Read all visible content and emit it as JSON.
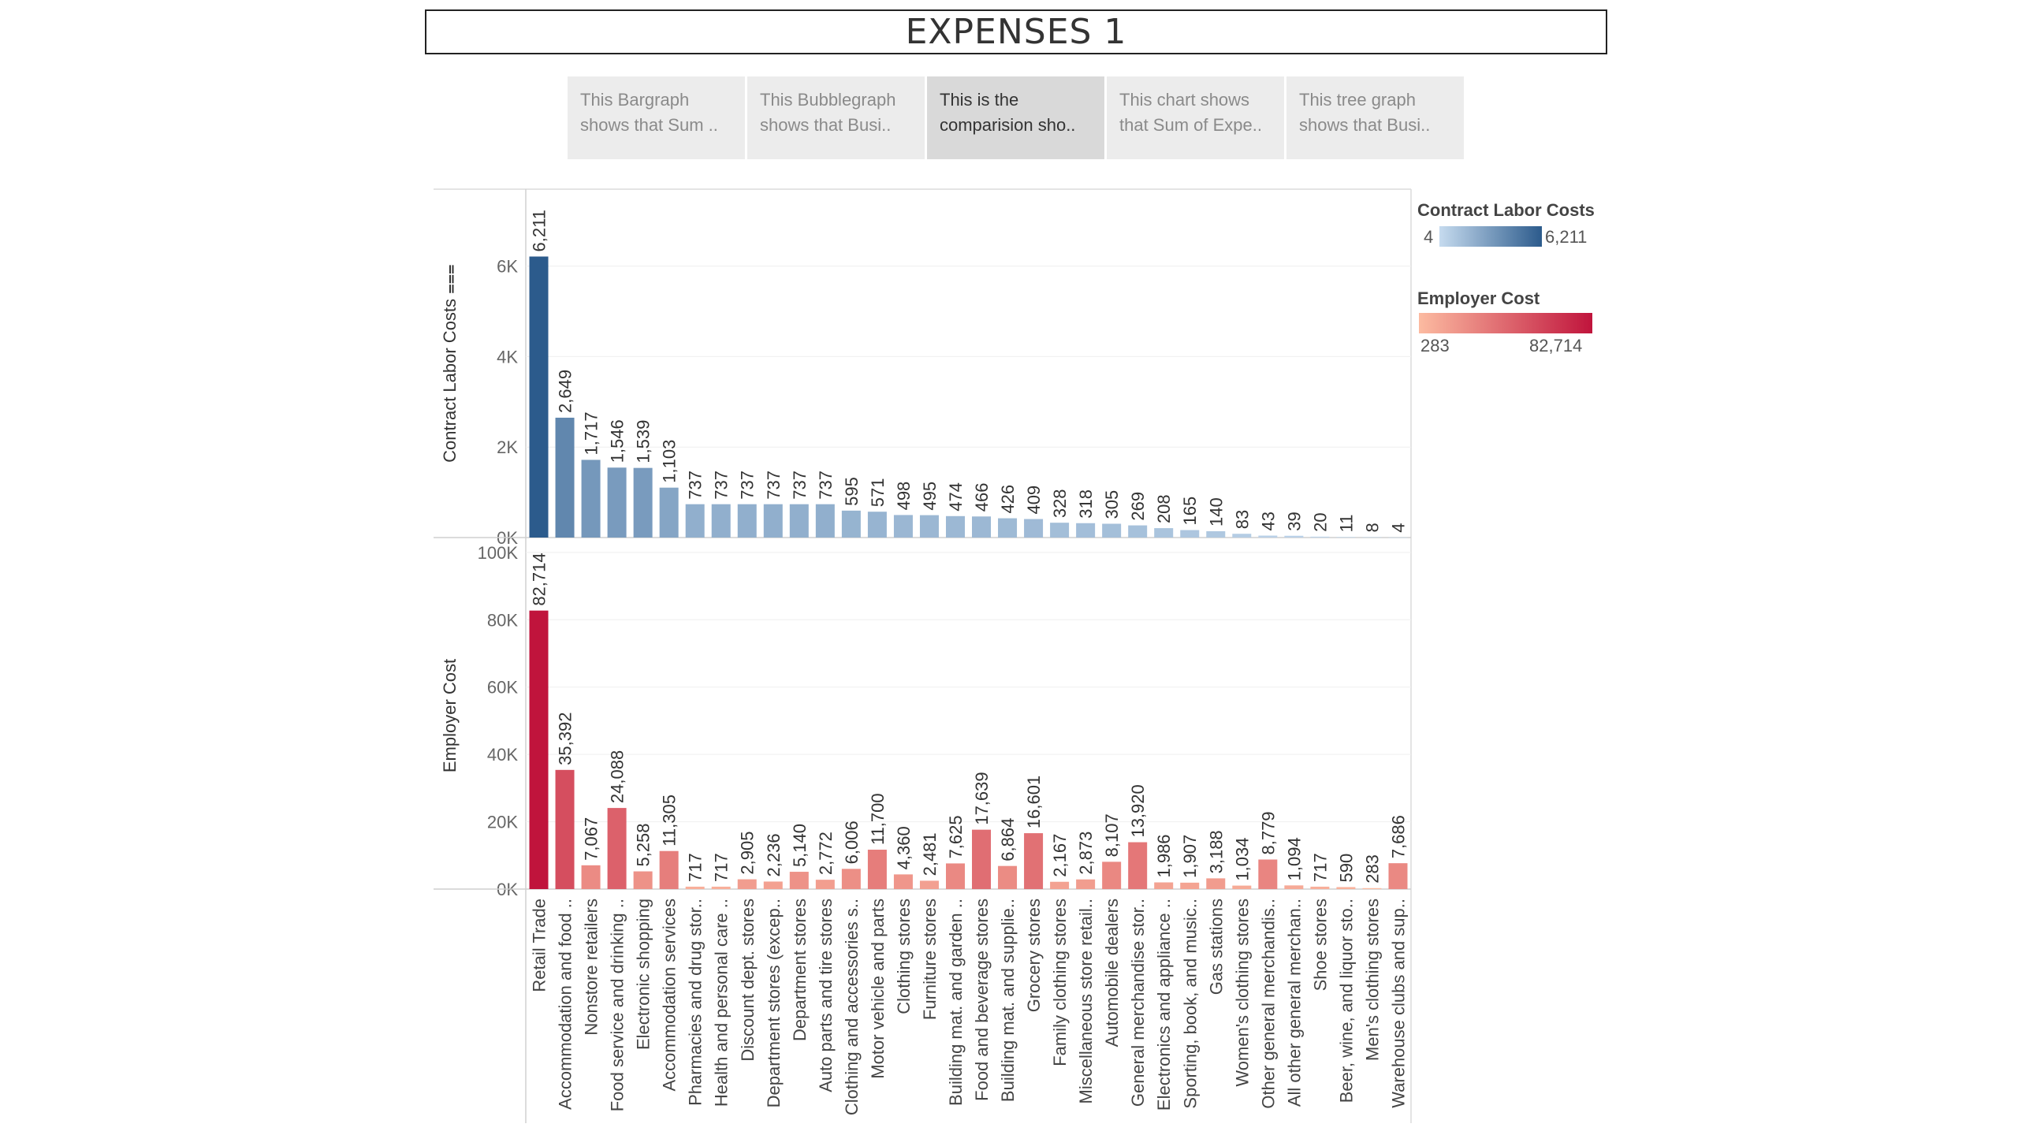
{
  "title": "EXPENSES 1",
  "tabs": [
    {
      "line1": "This Bargraph",
      "line2": "shows that Sum ..",
      "active": false
    },
    {
      "line1": "This Bubblegraph",
      "line2": "shows that Busi..",
      "active": false
    },
    {
      "line1": "This is the",
      "line2": "comparision sho..",
      "active": true
    },
    {
      "line1": "This chart shows",
      "line2": "that Sum of Expe..",
      "active": false
    },
    {
      "line1": "This tree graph",
      "line2": "shows that Busi..",
      "active": false
    }
  ],
  "legend": {
    "contract": {
      "title": "Contract Labor Costs",
      "min": "4",
      "max": "6,211",
      "color_low": "#c6dbef",
      "color_high": "#2c5b8c"
    },
    "employer": {
      "title": "Employer Cost",
      "min": "283",
      "max": "82,714",
      "color_low": "#fcbba1",
      "color_high": "#c0143c"
    }
  },
  "chart_data": {
    "type": "bar",
    "categories": [
      "Retail Trade",
      "Accommodation and food ..",
      "Nonstore retailers",
      "Food service and drinking ..",
      "Electronic shopping",
      "Accommodation services",
      "Pharmacies and drug stor..",
      "Health and personal care ..",
      "Discount dept. stores",
      "Department stores (excep..",
      "Department stores",
      "Auto parts and tire stores",
      "Clothing and accessories s..",
      "Motor vehicle and parts",
      "Clothing stores",
      "Furniture stores",
      "Building mat. and garden ..",
      "Food and beverage stores",
      "Building mat. and supplie..",
      "Grocery stores",
      "Family clothing stores",
      "Miscellaneous store retail..",
      "Automobile dealers",
      "General merchandise stor..",
      "Electronics and appliance ..",
      "Sporting, book, and music..",
      "Gas stations",
      "Women's clothing stores",
      "Other general merchandis..",
      "All other general merchan..",
      "Shoe stores",
      "Beer, wine, and liquor sto..",
      "Men's clothing stores",
      "Warehouse clubs and sup.."
    ],
    "series": [
      {
        "name": "Contract Labor Costs",
        "ylabel": "Contract Labor Costs",
        "sort_icon": "⩶",
        "ylim": [
          0,
          7700
        ],
        "ticks": [
          0,
          2000,
          4000,
          6000
        ],
        "tick_labels": [
          "0K",
          "2K",
          "4K",
          "6K"
        ],
        "values": [
          6211,
          2649,
          1717,
          1546,
          1539,
          1103,
          737,
          737,
          737,
          737,
          737,
          737,
          595,
          571,
          498,
          495,
          474,
          466,
          426,
          409,
          328,
          318,
          305,
          269,
          208,
          165,
          140,
          83,
          43,
          39,
          20,
          11,
          8,
          4
        ],
        "labels": [
          "6,211",
          "2,649",
          "1,717",
          "1,546",
          "1,539",
          "1,103",
          "737",
          "737",
          "737",
          "737",
          "737",
          "737",
          "595",
          "571",
          "498",
          "495",
          "474",
          "466",
          "426",
          "409",
          "328",
          "318",
          "305",
          "269",
          "208",
          "165",
          "140",
          "83",
          "43",
          "39",
          "20",
          "11",
          "8",
          "4"
        ]
      },
      {
        "name": "Employer Cost",
        "ylabel": "Employer Cost",
        "ylim": [
          0,
          103000
        ],
        "ticks": [
          0,
          20000,
          40000,
          60000,
          80000,
          100000
        ],
        "tick_labels": [
          "0K",
          "20K",
          "40K",
          "60K",
          "80K",
          "100K"
        ],
        "values": [
          82714,
          35392,
          7067,
          24088,
          5258,
          11305,
          717,
          717,
          2905,
          2236,
          5140,
          2772,
          6006,
          11700,
          4360,
          2481,
          7625,
          17639,
          6864,
          16601,
          2167,
          2873,
          8107,
          13920,
          1986,
          1907,
          3188,
          1034,
          8779,
          1094,
          717,
          590,
          283,
          7686
        ],
        "labels": [
          "82,714",
          "35,392",
          "7,067",
          "24,088",
          "5,258",
          "11,305",
          "717",
          "717",
          "2,905",
          "2,236",
          "5,140",
          "2,772",
          "6,006",
          "11,700",
          "4,360",
          "2,481",
          "7,625",
          "17,639",
          "6,864",
          "16,601",
          "2,167",
          "2,873",
          "8,107",
          "13,920",
          "1,986",
          "1,907",
          "3,188",
          "1,034",
          "8,779",
          "1,094",
          "717",
          "590",
          "283",
          "7,686"
        ]
      }
    ]
  }
}
